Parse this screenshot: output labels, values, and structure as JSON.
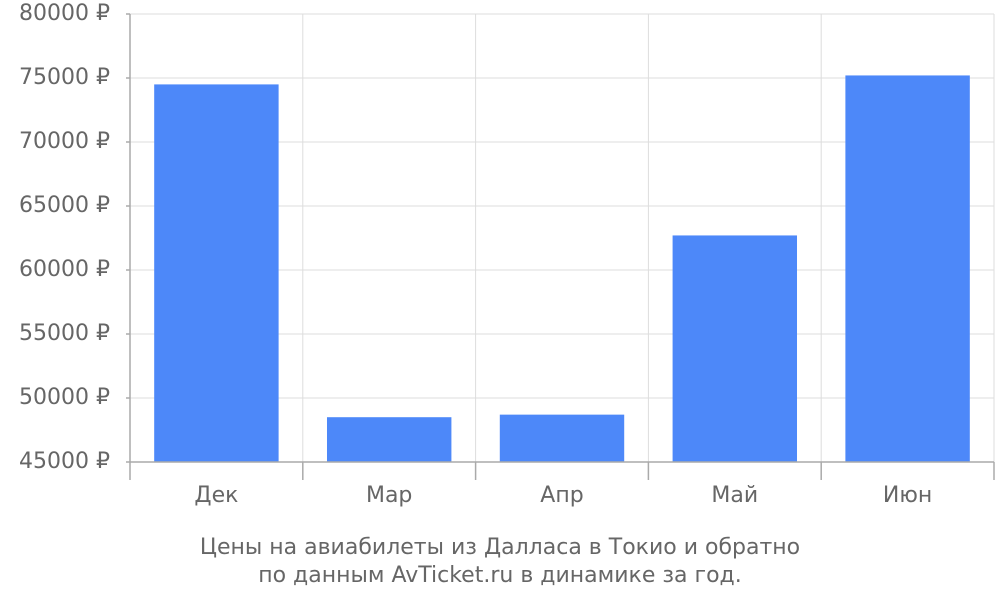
{
  "chart_data": {
    "type": "bar",
    "title": [
      "Цены на авиабилеты из Далласа в Токио и обратно",
      "по данным AvTicket.ru в динамике за год."
    ],
    "categories": [
      "Дек",
      "Мар",
      "Апр",
      "Май",
      "Июн"
    ],
    "values": [
      74500,
      48500,
      48700,
      62700,
      75200
    ],
    "color": "#4d88f9",
    "ylim": [
      45000,
      80000
    ],
    "yticks": [
      {
        "value": 45000,
        "label": "45000 ₽"
      },
      {
        "value": 50000,
        "label": "50000 ₽"
      },
      {
        "value": 55000,
        "label": "55000 ₽"
      },
      {
        "value": 60000,
        "label": "60000 ₽"
      },
      {
        "value": 65000,
        "label": "65000 ₽"
      },
      {
        "value": 70000,
        "label": "70000 ₽"
      },
      {
        "value": 75000,
        "label": "75000 ₽"
      },
      {
        "value": 80000,
        "label": "80000 ₽"
      }
    ],
    "grid": true
  }
}
